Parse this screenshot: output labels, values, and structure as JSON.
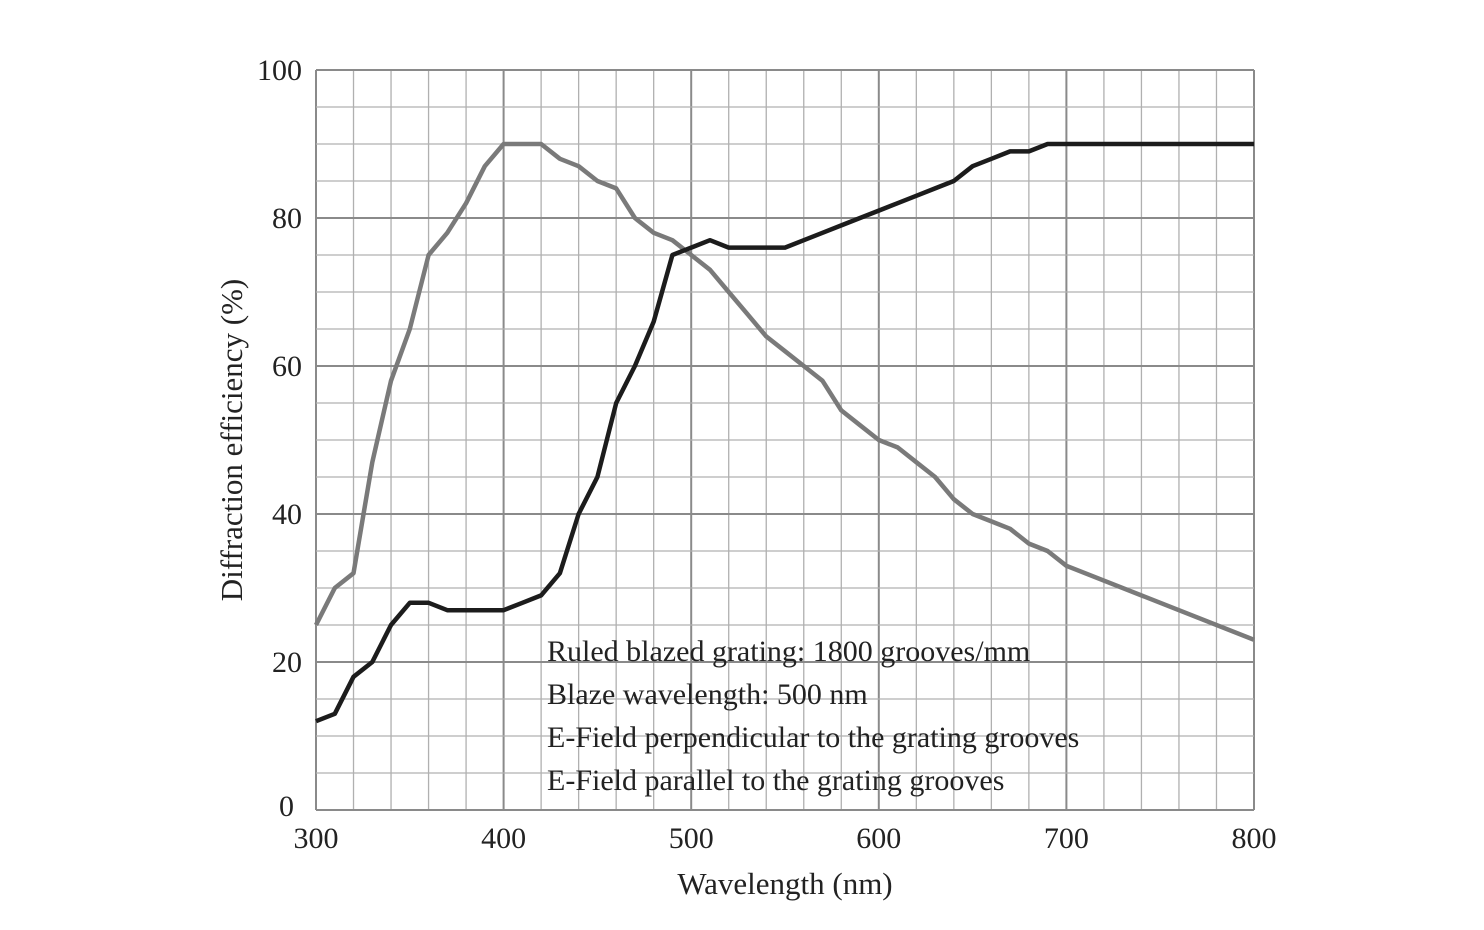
{
  "chart_data": {
    "type": "line",
    "title": "",
    "xlabel": "Wavelength (nm)",
    "ylabel": "Diffraction efficiency (%)",
    "xlim": [
      300,
      800
    ],
    "ylim": [
      0,
      100
    ],
    "xticks": [
      300,
      400,
      500,
      600,
      700,
      800
    ],
    "yticks": [
      0,
      20,
      40,
      60,
      80,
      100
    ],
    "grid": true,
    "annotations": [
      "Ruled blazed grating: 1800 grooves/mm",
      "Blaze wavelength: 500 nm",
      "E-Field perpendicular to the grating grooves",
      "E-Field parallel to the grating grooves"
    ],
    "series": [
      {
        "color": "#7a7a7a",
        "x": [
          300,
          310,
          320,
          330,
          340,
          350,
          360,
          370,
          380,
          390,
          400,
          410,
          420,
          430,
          440,
          450,
          460,
          470,
          480,
          490,
          500,
          510,
          520,
          530,
          540,
          550,
          560,
          570,
          580,
          590,
          600,
          610,
          620,
          630,
          640,
          650,
          660,
          670,
          680,
          690,
          700,
          800
        ],
        "y": [
          25,
          30,
          32,
          47,
          58,
          65,
          75,
          78,
          82,
          87,
          90,
          90,
          90,
          88,
          87,
          85,
          84,
          80,
          78,
          77,
          75,
          73,
          70,
          67,
          64,
          62,
          60,
          58,
          54,
          52,
          50,
          49,
          47,
          45,
          42,
          40,
          39,
          38,
          36,
          35,
          33,
          23
        ]
      },
      {
        "color": "#1c1c1c",
        "x": [
          300,
          310,
          320,
          330,
          340,
          350,
          360,
          370,
          380,
          390,
          400,
          410,
          420,
          430,
          440,
          450,
          460,
          470,
          480,
          490,
          500,
          510,
          520,
          530,
          540,
          550,
          560,
          570,
          580,
          590,
          600,
          610,
          620,
          630,
          640,
          650,
          660,
          670,
          680,
          690,
          700,
          800
        ],
        "y": [
          12,
          13,
          18,
          20,
          25,
          28,
          28,
          27,
          27,
          27,
          27,
          28,
          29,
          32,
          40,
          45,
          55,
          60,
          66,
          75,
          76,
          77,
          76,
          76,
          76,
          76,
          77,
          78,
          79,
          80,
          81,
          82,
          83,
          84,
          85,
          87,
          88,
          89,
          89,
          90,
          90,
          90
        ]
      }
    ]
  }
}
